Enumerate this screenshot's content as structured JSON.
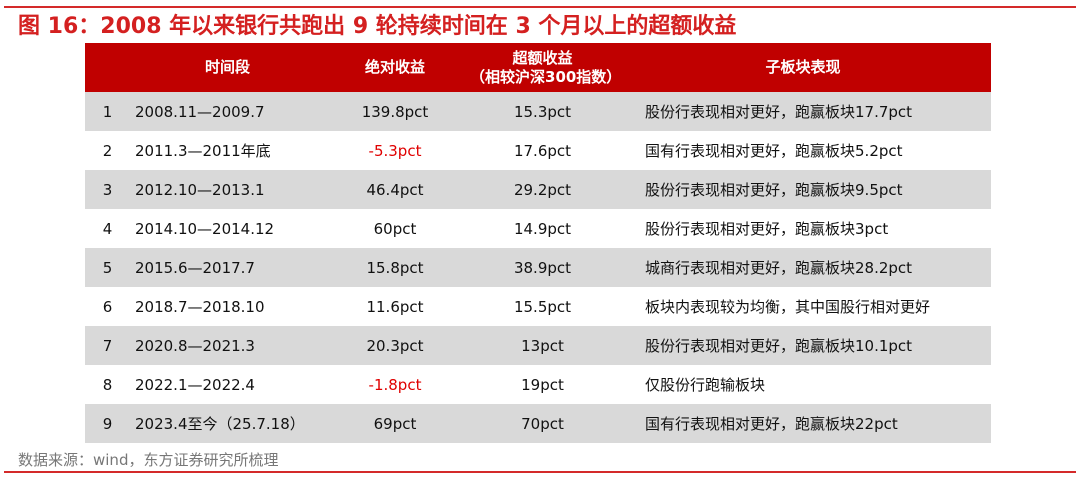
{
  "title": "图 16：2008 年以来银行共跑出 9 轮持续时间在 3 个月以上的超额收益",
  "headers": {
    "num": "",
    "period": "时间段",
    "absolute": "绝对收益",
    "excess_line1": "超额收益",
    "excess_line2": "（相较沪深300指数）",
    "sub": "子板块表现"
  },
  "rows": [
    {
      "num": "1",
      "period": "2008.11—2009.7",
      "absolute": "139.8pct",
      "excess": "15.3pct",
      "sub": "股份行表现相对更好，跑赢板块17.7pct",
      "negative": false
    },
    {
      "num": "2",
      "period": "2011.3—2011年底",
      "absolute": "-5.3pct",
      "excess": "17.6pct",
      "sub": "国有行表现相对更好，跑赢板块5.2pct",
      "negative": true
    },
    {
      "num": "3",
      "period": "2012.10—2013.1",
      "absolute": "46.4pct",
      "excess": "29.2pct",
      "sub": "股份行表现相对更好，跑赢板块9.5pct",
      "negative": false
    },
    {
      "num": "4",
      "period": "2014.10—2014.12",
      "absolute": "60pct",
      "excess": "14.9pct",
      "sub": "股份行表现相对更好，跑赢板块3pct",
      "negative": false
    },
    {
      "num": "5",
      "period": "2015.6—2017.7",
      "absolute": "15.8pct",
      "excess": "38.9pct",
      "sub": "城商行表现相对更好，跑赢板块28.2pct",
      "negative": false
    },
    {
      "num": "6",
      "period": "2018.7—2018.10",
      "absolute": "11.6pct",
      "excess": "15.5pct",
      "sub": "板块内表现较为均衡，其中国股行相对更好",
      "negative": false
    },
    {
      "num": "7",
      "period": "2020.8—2021.3",
      "absolute": "20.3pct",
      "excess": "13pct",
      "sub": "股份行表现相对更好，跑赢板块10.1pct",
      "negative": false
    },
    {
      "num": "8",
      "period": "2022.1—2022.4",
      "absolute": "-1.8pct",
      "excess": "19pct",
      "sub": "仅股份行跑输板块",
      "negative": true
    },
    {
      "num": "9",
      "period": "2023.4至今（25.7.18）",
      "absolute": "69pct",
      "excess": "70pct",
      "sub": "国有行表现相对更好，跑赢板块22pct",
      "negative": false
    }
  ],
  "source": "数据来源：wind，东方证券研究所梳理",
  "colors": {
    "accent": "#c00000",
    "title": "#d42020",
    "negative": "#e00000",
    "stripe": "#d9d9d9"
  }
}
